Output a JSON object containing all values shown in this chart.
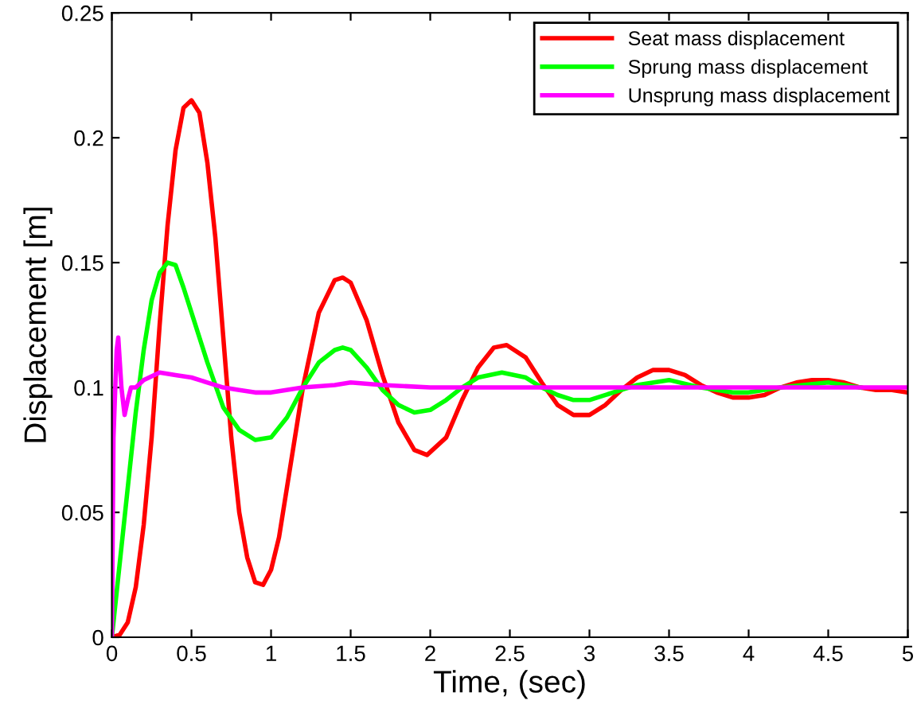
{
  "chart_data": {
    "type": "line",
    "xlabel": "Time, (sec)",
    "ylabel": "Displacement [m]",
    "xlim": [
      0,
      5
    ],
    "ylim": [
      0,
      0.25
    ],
    "xticks": [
      0,
      0.5,
      1,
      1.5,
      2,
      2.5,
      3,
      3.5,
      4,
      4.5,
      5
    ],
    "yticks": [
      0,
      0.05,
      0.1,
      0.15,
      0.2,
      0.25
    ],
    "grid": false,
    "legend": "top right",
    "marker": "none",
    "line_style": "solid",
    "series": [
      {
        "name": "Seat mass displacement",
        "color": "#ff0000",
        "x": [
          0,
          0.05,
          0.1,
          0.15,
          0.2,
          0.25,
          0.3,
          0.35,
          0.4,
          0.45,
          0.5,
          0.55,
          0.6,
          0.65,
          0.7,
          0.75,
          0.8,
          0.85,
          0.9,
          0.95,
          1.0,
          1.05,
          1.1,
          1.2,
          1.3,
          1.4,
          1.45,
          1.5,
          1.6,
          1.7,
          1.8,
          1.9,
          1.98,
          2.1,
          2.2,
          2.3,
          2.4,
          2.48,
          2.6,
          2.7,
          2.8,
          2.9,
          3.0,
          3.1,
          3.2,
          3.3,
          3.4,
          3.5,
          3.6,
          3.7,
          3.8,
          3.9,
          4.0,
          4.1,
          4.2,
          4.3,
          4.4,
          4.5,
          4.6,
          4.7,
          4.8,
          4.9,
          5.0
        ],
        "values": [
          0,
          0.001,
          0.006,
          0.02,
          0.045,
          0.08,
          0.125,
          0.165,
          0.195,
          0.212,
          0.215,
          0.21,
          0.19,
          0.16,
          0.12,
          0.08,
          0.05,
          0.032,
          0.022,
          0.021,
          0.027,
          0.04,
          0.06,
          0.1,
          0.13,
          0.143,
          0.144,
          0.142,
          0.127,
          0.105,
          0.086,
          0.075,
          0.073,
          0.08,
          0.095,
          0.108,
          0.116,
          0.117,
          0.112,
          0.102,
          0.093,
          0.089,
          0.089,
          0.093,
          0.099,
          0.104,
          0.107,
          0.107,
          0.105,
          0.101,
          0.098,
          0.096,
          0.096,
          0.097,
          0.1,
          0.102,
          0.103,
          0.103,
          0.102,
          0.1,
          0.099,
          0.099,
          0.098
        ]
      },
      {
        "name": "Sprung mass displacement",
        "color": "#00ff00",
        "x": [
          0,
          0.05,
          0.1,
          0.15,
          0.2,
          0.25,
          0.3,
          0.35,
          0.4,
          0.45,
          0.5,
          0.6,
          0.7,
          0.8,
          0.9,
          1.0,
          1.1,
          1.2,
          1.3,
          1.4,
          1.45,
          1.5,
          1.6,
          1.7,
          1.8,
          1.9,
          2.0,
          2.1,
          2.2,
          2.3,
          2.45,
          2.6,
          2.7,
          2.8,
          2.9,
          3.0,
          3.2,
          3.3,
          3.5,
          3.7,
          3.9,
          4.0,
          4.2,
          4.5,
          4.7
        ],
        "values": [
          0,
          0.03,
          0.06,
          0.09,
          0.115,
          0.135,
          0.146,
          0.15,
          0.149,
          0.14,
          0.13,
          0.11,
          0.092,
          0.083,
          0.079,
          0.08,
          0.088,
          0.1,
          0.11,
          0.115,
          0.116,
          0.115,
          0.108,
          0.099,
          0.093,
          0.09,
          0.091,
          0.095,
          0.1,
          0.104,
          0.106,
          0.104,
          0.1,
          0.097,
          0.095,
          0.095,
          0.099,
          0.101,
          0.103,
          0.1,
          0.098,
          0.098,
          0.1,
          0.102,
          0.1
        ]
      },
      {
        "name": "Unsprung mass displacement",
        "color": "#ff00ff",
        "x": [
          0,
          0.01,
          0.03,
          0.04,
          0.06,
          0.08,
          0.1,
          0.12,
          0.15,
          0.2,
          0.3,
          0.4,
          0.5,
          0.6,
          0.7,
          0.8,
          0.9,
          1.0,
          1.2,
          1.4,
          1.5,
          1.7,
          2.0,
          2.5,
          3.0,
          4.0,
          5.0
        ],
        "values": [
          0,
          0.08,
          0.115,
          0.12,
          0.1,
          0.089,
          0.095,
          0.1,
          0.1,
          0.103,
          0.106,
          0.105,
          0.104,
          0.102,
          0.1,
          0.099,
          0.098,
          0.098,
          0.1,
          0.101,
          0.102,
          0.101,
          0.1,
          0.1,
          0.1,
          0.1,
          0.1
        ]
      }
    ]
  }
}
